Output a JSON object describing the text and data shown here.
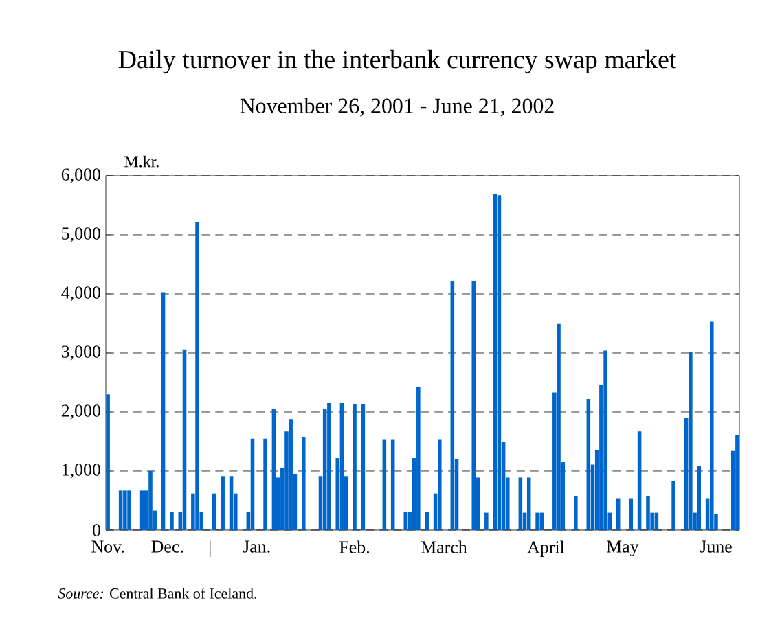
{
  "chart_data": {
    "type": "bar",
    "title": "Daily turnover in the interbank currency swap market",
    "subtitle": "November 26, 2001 - June 21, 2002",
    "ylabel": "M.kr.",
    "annotations": [
      "*Source:* Central Bank of Iceland."
    ],
    "categories": [
      "Nov.",
      null,
      null,
      null,
      null,
      null,
      null,
      null,
      null,
      null,
      null,
      null,
      null,
      null,
      "Dec.",
      null,
      null,
      null,
      null,
      null,
      null,
      null,
      null,
      null,
      "|",
      null,
      null,
      null,
      null,
      null,
      null,
      null,
      null,
      null,
      null,
      "Jan.",
      null,
      null,
      null,
      null,
      null,
      null,
      null,
      null,
      null,
      null,
      null,
      null,
      null,
      null,
      null,
      null,
      null,
      null,
      null,
      null,
      null,
      null,
      "Feb.",
      null,
      null,
      null,
      null,
      null,
      null,
      null,
      null,
      null,
      null,
      null,
      null,
      null,
      null,
      null,
      null,
      null,
      null,
      null,
      null,
      "March",
      null,
      null,
      null,
      null,
      null,
      null,
      null,
      null,
      null,
      null,
      null,
      null,
      null,
      null,
      null,
      null,
      null,
      null,
      null,
      null,
      null,
      null,
      null,
      "April",
      null,
      null,
      null,
      null,
      null,
      null,
      null,
      null,
      null,
      null,
      null,
      null,
      null,
      null,
      null,
      null,
      null,
      "May",
      null,
      null,
      null,
      null,
      null,
      null,
      null,
      null,
      null,
      null,
      null,
      null,
      null,
      null,
      null,
      null,
      null,
      null,
      null,
      null,
      null,
      "June",
      null,
      null,
      null,
      null,
      null
    ],
    "values": [
      2300,
      null,
      null,
      670,
      670,
      670,
      null,
      null,
      670,
      670,
      1000,
      330,
      null,
      4030,
      null,
      310,
      null,
      310,
      3060,
      null,
      620,
      5210,
      310,
      null,
      null,
      620,
      null,
      915,
      null,
      915,
      620,
      null,
      null,
      310,
      1550,
      null,
      null,
      1550,
      null,
      2050,
      890,
      1050,
      1670,
      1880,
      950,
      null,
      1570,
      null,
      null,
      null,
      915,
      2050,
      2150,
      null,
      1220,
      2150,
      915,
      null,
      2130,
      null,
      2130,
      null,
      null,
      null,
      null,
      1530,
      null,
      1530,
      null,
      null,
      310,
      310,
      1220,
      2430,
      null,
      310,
      null,
      620,
      1530,
      null,
      null,
      4220,
      1200,
      null,
      null,
      null,
      4220,
      890,
      null,
      295,
      null,
      5690,
      5670,
      1500,
      890,
      null,
      null,
      890,
      295,
      890,
      null,
      295,
      295,
      null,
      null,
      2330,
      3490,
      1150,
      null,
      null,
      570,
      null,
      null,
      2220,
      1110,
      1360,
      2460,
      3040,
      295,
      null,
      540,
      null,
      null,
      540,
      null,
      1670,
      null,
      570,
      295,
      295,
      null,
      null,
      null,
      830,
      null,
      null,
      1900,
      3020,
      295,
      1085,
      null,
      540,
      3530,
      270,
      null,
      null,
      null,
      1340,
      1610
    ],
    "color": "#0066cc",
    "ylim": [
      0,
      6000
    ],
    "yticks": [
      0,
      {
        "value": 1000,
        "label": "1,000"
      },
      {
        "value": 2000,
        "label": "2,000"
      },
      {
        "value": 3000,
        "label": "3,000"
      },
      {
        "value": 4000,
        "label": "4,000"
      },
      {
        "value": 5000,
        "label": "5,000"
      },
      {
        "value": 6000,
        "label": "6,000"
      }
    ],
    "grid": "y"
  }
}
